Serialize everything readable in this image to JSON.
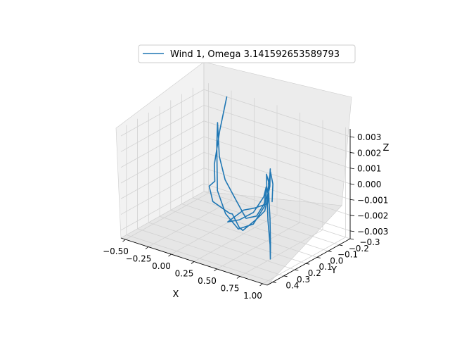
{
  "chart_data": {
    "type": "line-3d",
    "title": "",
    "legend": {
      "placement": "upper-center",
      "entries": [
        "Wind 1, Omega 3.141592653589793"
      ]
    },
    "series": [
      {
        "name": "Wind 1, Omega 3.141592653589793",
        "color": "#1f77b4",
        "points": [
          [
            -0.3,
            -0.3,
            0.003
          ],
          [
            -0.28,
            -0.22,
            0.0012
          ],
          [
            -0.29,
            -0.18,
            -0.0008
          ],
          [
            -0.31,
            -0.2,
            -0.002
          ],
          [
            -0.25,
            -0.1,
            -0.0018
          ],
          [
            -0.15,
            -0.05,
            -0.0024
          ],
          [
            0.0,
            -0.08,
            -0.003
          ],
          [
            0.1,
            -0.02,
            -0.0026
          ],
          [
            0.2,
            0.0,
            -0.0032
          ],
          [
            0.3,
            0.05,
            -0.003
          ],
          [
            0.45,
            0.05,
            -0.002
          ],
          [
            0.6,
            0.1,
            -0.001
          ],
          [
            0.68,
            0.12,
            0.0008
          ],
          [
            0.66,
            0.1,
            0.0018
          ],
          [
            0.55,
            0.02,
            0.0
          ],
          [
            0.45,
            -0.05,
            -0.0014
          ],
          [
            0.3,
            -0.06,
            -0.002
          ],
          [
            0.15,
            -0.08,
            -0.0025
          ],
          [
            0.05,
            -0.02,
            -0.0032
          ],
          [
            0.15,
            0.02,
            -0.0028
          ],
          [
            0.3,
            0.08,
            -0.0022
          ],
          [
            0.5,
            0.12,
            -0.0012
          ],
          [
            0.65,
            0.15,
            0.0002
          ],
          [
            0.7,
            0.17,
            0.001
          ],
          [
            0.62,
            0.12,
            -0.0004
          ],
          [
            0.45,
            0.05,
            -0.0018
          ],
          [
            0.25,
            -0.02,
            -0.0026
          ],
          [
            0.05,
            -0.1,
            -0.0022
          ],
          [
            -0.1,
            -0.12,
            -0.0012
          ],
          [
            -0.2,
            -0.15,
            0.0
          ],
          [
            -0.28,
            -0.2,
            0.0018
          ],
          [
            -0.24,
            -0.16,
            0.0006
          ],
          [
            -0.1,
            -0.05,
            -0.0016
          ],
          [
            0.05,
            0.0,
            -0.0026
          ],
          [
            0.25,
            0.05,
            -0.003
          ],
          [
            0.45,
            0.08,
            -0.0022
          ],
          [
            0.62,
            0.12,
            -0.0006
          ],
          [
            0.72,
            0.16,
            0.0012
          ],
          [
            0.74,
            0.2,
            0.002
          ],
          [
            0.72,
            0.18,
            0.0008
          ],
          [
            0.78,
            0.22,
            -0.0008
          ],
          [
            0.9,
            0.3,
            -0.0018
          ],
          [
            1.0,
            0.38,
            -0.0022
          ],
          [
            1.05,
            0.42,
            -0.001
          ],
          [
            1.02,
            0.4,
            0.0005
          ],
          [
            0.95,
            0.35,
            0.0012
          ],
          [
            0.98,
            0.38,
            0.0026
          ],
          [
            1.05,
            0.42,
            0.0036
          ],
          [
            1.1,
            0.44,
            0.003
          ],
          [
            1.08,
            0.43,
            0.0018
          ]
        ]
      }
    ],
    "xlabel": "X",
    "ylabel": "Y",
    "zlabel": "Z",
    "xlim": [
      -0.55,
      1.05
    ],
    "ylim": [
      -0.3,
      0.45
    ],
    "zlim": [
      -0.0035,
      0.0035
    ],
    "xticks": [
      "−0.50",
      "−0.25",
      "0.00",
      "0.25",
      "0.50",
      "0.75",
      "1.00"
    ],
    "yticks": [
      "−0.3",
      "−0.2",
      "−0.1",
      "0.0",
      "0.1",
      "0.2",
      "0.3",
      "0.4"
    ],
    "zticks": [
      "−0.003",
      "−0.002",
      "−0.001",
      "0.000",
      "0.001",
      "0.002",
      "0.003"
    ],
    "grid": true
  }
}
